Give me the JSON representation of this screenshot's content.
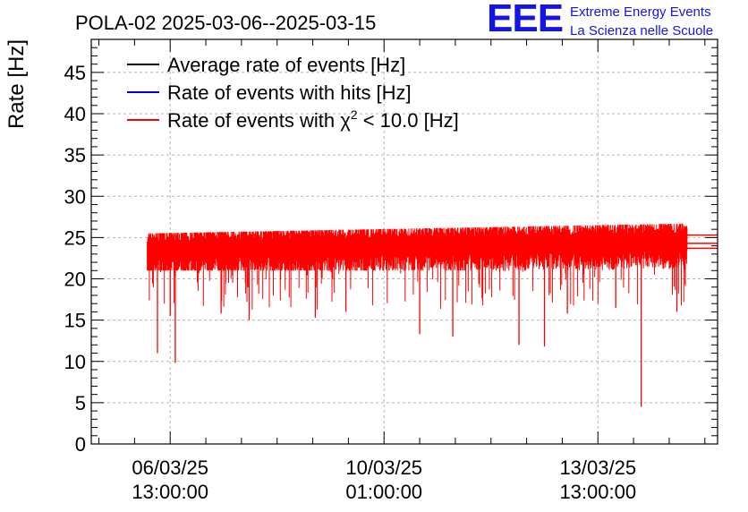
{
  "logo": {
    "mark": "EEE",
    "line1": "Extreme Energy Events",
    "line2": "La Scienza nelle Scuole"
  },
  "colors": {
    "average": "#000000",
    "hits": "#0000cc",
    "chi2": "#ff0000",
    "brand": "#1414e6"
  },
  "chart_data": {
    "type": "line",
    "title": "POLA-02 2025-03-06--2025-03-15",
    "ylabel": "Rate [Hz]",
    "xlabel": "",
    "ylim": [
      0,
      49
    ],
    "yticks": [
      0,
      5,
      10,
      15,
      20,
      25,
      30,
      35,
      40,
      45
    ],
    "grid": true,
    "legend_position": "top-left",
    "xticks": [
      {
        "date": "06/03/25",
        "time": "13:00:00"
      },
      {
        "date": "10/03/25",
        "time": "01:00:00"
      },
      {
        "date": "13/03/25",
        "time": "13:00:00"
      }
    ],
    "legend": [
      {
        "name": "Average rate of events [Hz]",
        "color": "#000000"
      },
      {
        "name": "Rate of events with hits [Hz]",
        "color": "#0000cc"
      },
      {
        "name_prefix": "Rate of events with ",
        "name_symbol": "χ",
        "name_sup": "2",
        "name_suffix": " < 10.0 [Hz]",
        "color": "#ff0000"
      }
    ],
    "series": [
      {
        "name": "Rate of events with χ2 < 10.0 [Hz]",
        "color": "#ff0000",
        "x_start": "2025-03-06 04:00",
        "x_end": "2025-03-15 00:00",
        "baseline_start": 23.3,
        "baseline_end": 24.3,
        "band": [
          21.5,
          25.5
        ],
        "dips": [
          {
            "x": "2025-03-06 08:00",
            "y": 11.0
          },
          {
            "x": "2025-03-06 15:00",
            "y": 9.8
          },
          {
            "x": "2025-03-06 13:00",
            "y": 15.5
          },
          {
            "x": "2025-03-07 09:00",
            "y": 15.8
          },
          {
            "x": "2025-03-07 20:00",
            "y": 15.0
          },
          {
            "x": "2025-03-08 22:00",
            "y": 15.3
          },
          {
            "x": "2025-03-09 10:00",
            "y": 16.0
          },
          {
            "x": "2025-03-10 15:00",
            "y": 13.3
          },
          {
            "x": "2025-03-11 04:00",
            "y": 13.0
          },
          {
            "x": "2025-03-12 06:00",
            "y": 12.0
          },
          {
            "x": "2025-03-12 16:00",
            "y": 11.8
          },
          {
            "x": "2025-03-13 01:00",
            "y": 15.8
          },
          {
            "x": "2025-03-13 20:00",
            "y": 16.5
          },
          {
            "x": "2025-03-14 06:00",
            "y": 4.5
          },
          {
            "x": "2025-03-14 20:00",
            "y": 16.0
          }
        ]
      }
    ]
  }
}
